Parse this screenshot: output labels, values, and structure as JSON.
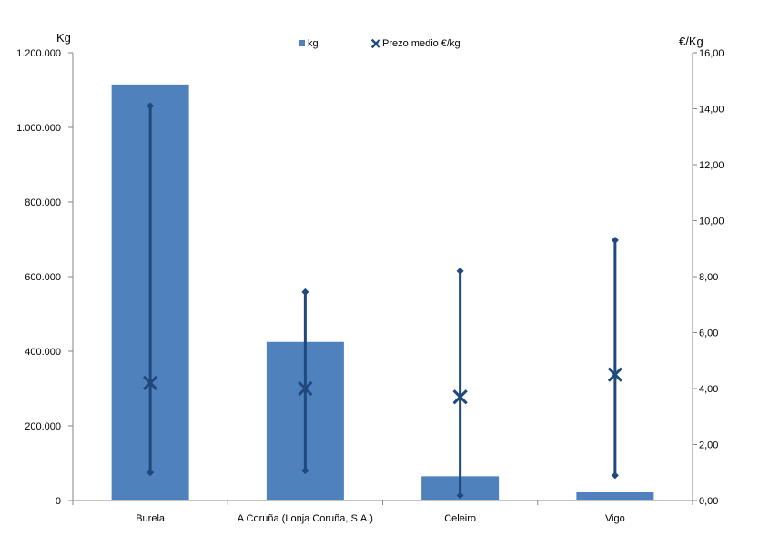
{
  "chart_data": {
    "type": "bar",
    "categories": [
      "Burela",
      "A Coruña (Lonja Coruña, S.A.)",
      "Celeiro",
      "Vigo"
    ],
    "series": [
      {
        "name": "kg",
        "type": "bar",
        "axis": "left",
        "values": [
          1115000,
          425000,
          65000,
          22000
        ]
      },
      {
        "name": "Prezo medio €/kg",
        "type": "range-marker",
        "axis": "right",
        "values": [
          4.2,
          4.0,
          3.7,
          4.5
        ],
        "min": [
          1.0,
          1.07,
          0.18,
          0.9
        ],
        "max": [
          14.1,
          7.45,
          8.2,
          9.3
        ]
      }
    ],
    "y_left": {
      "unit_label": "Kg",
      "ylim": [
        0,
        1200000
      ],
      "ticks": [
        "0",
        "200.000",
        "400.000",
        "600.000",
        "800.000",
        "1.000.000",
        "1.200.000"
      ]
    },
    "y_right": {
      "unit_label": "€/Kg",
      "ylim": [
        0,
        16
      ],
      "ticks": [
        "0,00",
        "2,00",
        "4,00",
        "6,00",
        "8,00",
        "10,00",
        "12,00",
        "14,00",
        "16,00"
      ]
    },
    "legend_position": "top-center",
    "grid": false
  },
  "colors": {
    "bar": "#4F81BD",
    "marker": "#1F497D",
    "axis": "#868686"
  }
}
